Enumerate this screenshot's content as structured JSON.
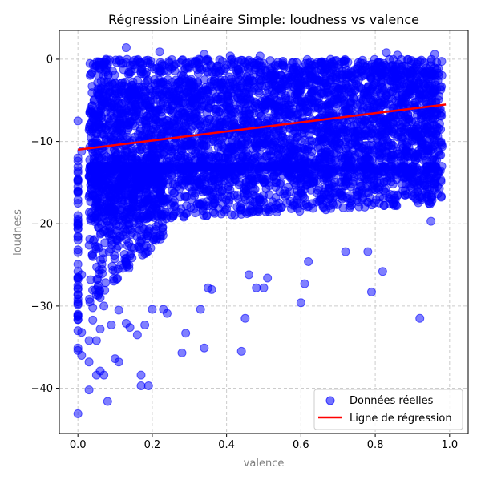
{
  "chart_data": {
    "type": "scatter",
    "title": "Régression Linéaire Simple: loudness vs valence",
    "xlabel": "valence",
    "ylabel": "loudness",
    "xlim": [
      -0.05,
      1.05
    ],
    "ylim": [
      -45.5,
      3.5
    ],
    "xticks": [
      0.0,
      0.2,
      0.4,
      0.6,
      0.8,
      1.0
    ],
    "xtick_labels": [
      "0.0",
      "0.2",
      "0.4",
      "0.6",
      "0.8",
      "1.0"
    ],
    "yticks": [
      0,
      -10,
      -20,
      -30,
      -40
    ],
    "ytick_labels": [
      "0",
      "−10",
      "−20",
      "−30",
      "−40"
    ],
    "grid": true,
    "legend_position": "lower-right",
    "colors": {
      "points": "#0000ff",
      "line": "#ff0000",
      "grid": "#cccccc",
      "axis_label": "#808080"
    },
    "series": [
      {
        "name": "Données réelles",
        "kind": "scatter",
        "points": [
          [
            0.0,
            -43.1
          ],
          [
            0.0,
            -35.1
          ],
          [
            0.0,
            -35.4
          ],
          [
            0.0,
            -33.0
          ],
          [
            0.0,
            -31.0
          ],
          [
            0.0,
            -29.5
          ],
          [
            0.0,
            -27.5
          ],
          [
            0.0,
            -25.8
          ],
          [
            0.0,
            -23.5
          ],
          [
            0.0,
            -21.5
          ],
          [
            0.0,
            -19.0
          ],
          [
            0.0,
            -17.5
          ],
          [
            0.0,
            -15.5
          ],
          [
            0.0,
            -13.8
          ],
          [
            0.0,
            -12.0
          ],
          [
            0.0,
            -7.5
          ],
          [
            0.01,
            -33.2
          ],
          [
            0.01,
            -36.0
          ],
          [
            0.01,
            -26.2
          ],
          [
            0.01,
            -11.2
          ],
          [
            0.03,
            -40.2
          ],
          [
            0.03,
            -36.8
          ],
          [
            0.03,
            -34.2
          ],
          [
            0.04,
            -31.7
          ],
          [
            0.04,
            -30.2
          ],
          [
            0.05,
            -34.2
          ],
          [
            0.05,
            -38.4
          ],
          [
            0.06,
            -37.9
          ],
          [
            0.06,
            -32.8
          ],
          [
            0.06,
            -29.0
          ],
          [
            0.07,
            -38.4
          ],
          [
            0.07,
            -30.0
          ],
          [
            0.08,
            -41.6
          ],
          [
            0.09,
            -32.3
          ],
          [
            0.1,
            -36.4
          ],
          [
            0.11,
            -36.8
          ],
          [
            0.11,
            -30.5
          ],
          [
            0.13,
            -32.1
          ],
          [
            0.14,
            -32.6
          ],
          [
            0.16,
            -33.5
          ],
          [
            0.17,
            -39.7
          ],
          [
            0.17,
            -38.4
          ],
          [
            0.18,
            -32.3
          ],
          [
            0.19,
            -39.7
          ],
          [
            0.2,
            -30.4
          ],
          [
            0.23,
            -30.4
          ],
          [
            0.24,
            -30.9
          ],
          [
            0.28,
            -35.7
          ],
          [
            0.29,
            -33.3
          ],
          [
            0.33,
            -30.4
          ],
          [
            0.34,
            -35.1
          ],
          [
            0.35,
            -27.8
          ],
          [
            0.36,
            -28.0
          ],
          [
            0.44,
            -35.5
          ],
          [
            0.45,
            -31.5
          ],
          [
            0.46,
            -26.2
          ],
          [
            0.48,
            -27.8
          ],
          [
            0.5,
            -27.8
          ],
          [
            0.51,
            -26.6
          ],
          [
            0.6,
            -29.6
          ],
          [
            0.61,
            -27.3
          ],
          [
            0.62,
            -24.6
          ],
          [
            0.72,
            -23.4
          ],
          [
            0.78,
            -23.4
          ],
          [
            0.79,
            -28.3
          ],
          [
            0.82,
            -25.8
          ],
          [
            0.92,
            -31.5
          ],
          [
            0.95,
            -19.7
          ],
          [
            0.13,
            1.4
          ],
          [
            0.22,
            0.9
          ],
          [
            0.34,
            0.6
          ],
          [
            0.41,
            0.4
          ],
          [
            0.49,
            0.4
          ],
          [
            0.83,
            0.8
          ],
          [
            0.86,
            0.5
          ],
          [
            0.96,
            0.6
          ]
        ],
        "dense_band": {
          "description_free_note": "",
          "x_range": [
            0.03,
            0.98
          ],
          "y_core": [
            -13.0,
            -2.0
          ],
          "y_spread": [
            -20.0,
            0.0
          ]
        }
      },
      {
        "name": "Ligne de régression",
        "kind": "line",
        "x": [
          0.0,
          0.99
        ],
        "y": [
          -11.0,
          -5.5
        ]
      }
    ]
  }
}
